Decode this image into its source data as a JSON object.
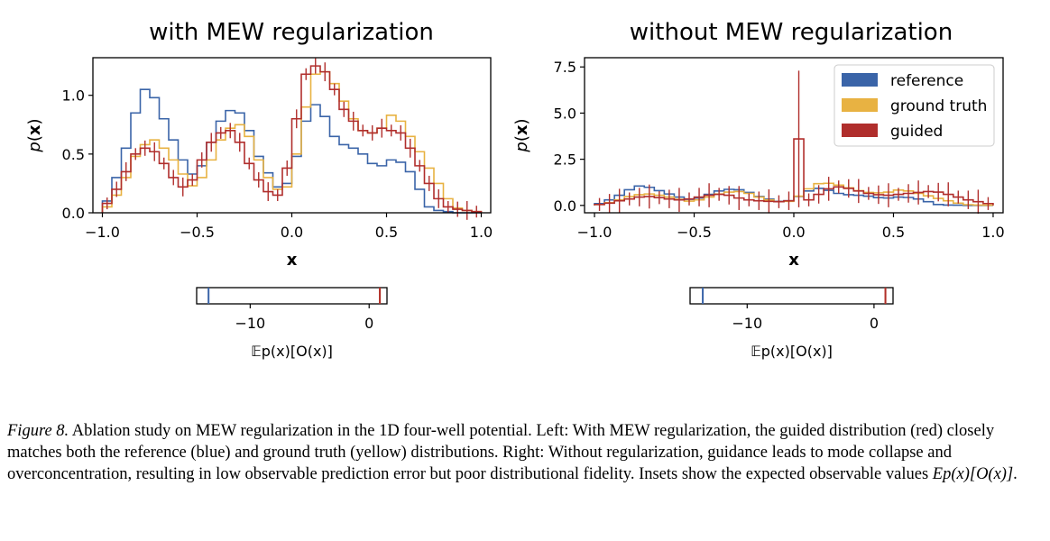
{
  "colors": {
    "reference": "#3a64a8",
    "ground_truth": "#e8b242",
    "guided": "#b02e2c"
  },
  "chart_data": [
    {
      "type": "line",
      "title": "with MEW regularization",
      "xlabel": "x",
      "ylabel": "p(x)",
      "xlim": [
        -1.05,
        1.05
      ],
      "ylim": [
        0,
        1.32
      ],
      "xticks": [
        "−1.0",
        "−0.5",
        "0.0",
        "0.5",
        "1.0"
      ],
      "yticks": [
        "0.0",
        "0.5",
        "1.0"
      ],
      "grid": false,
      "legend": "none",
      "x": [
        -1.0,
        -0.95,
        -0.9,
        -0.85,
        -0.8,
        -0.75,
        -0.7,
        -0.65,
        -0.6,
        -0.55,
        -0.5,
        -0.45,
        -0.4,
        -0.35,
        -0.3,
        -0.25,
        -0.2,
        -0.15,
        -0.1,
        -0.05,
        0.0,
        0.05,
        0.1,
        0.15,
        0.2,
        0.25,
        0.3,
        0.35,
        0.4,
        0.45,
        0.5,
        0.55,
        0.6,
        0.65,
        0.7,
        0.75,
        0.8,
        0.85,
        0.9,
        0.95
      ],
      "series": [
        {
          "name": "reference",
          "values": [
            0.1,
            0.3,
            0.55,
            0.85,
            1.05,
            0.98,
            0.8,
            0.62,
            0.45,
            0.33,
            0.4,
            0.6,
            0.78,
            0.87,
            0.85,
            0.7,
            0.48,
            0.34,
            0.22,
            0.25,
            0.48,
            0.78,
            0.92,
            0.82,
            0.65,
            0.58,
            0.55,
            0.5,
            0.42,
            0.4,
            0.45,
            0.43,
            0.35,
            0.2,
            0.05,
            0.02,
            0.01,
            0.0,
            0.0,
            0.0
          ]
        },
        {
          "name": "ground truth",
          "values": [
            0.05,
            0.15,
            0.3,
            0.48,
            0.58,
            0.62,
            0.55,
            0.45,
            0.33,
            0.23,
            0.3,
            0.45,
            0.62,
            0.72,
            0.75,
            0.65,
            0.45,
            0.3,
            0.2,
            0.22,
            0.5,
            0.9,
            1.18,
            1.2,
            1.1,
            0.95,
            0.8,
            0.7,
            0.68,
            0.72,
            0.83,
            0.78,
            0.65,
            0.52,
            0.38,
            0.25,
            0.12,
            0.04,
            0.02,
            0.01
          ]
        },
        {
          "name": "guided",
          "values": [
            0.08,
            0.2,
            0.35,
            0.5,
            0.55,
            0.52,
            0.42,
            0.3,
            0.22,
            0.28,
            0.45,
            0.6,
            0.68,
            0.7,
            0.6,
            0.42,
            0.28,
            0.18,
            0.15,
            0.38,
            0.8,
            1.18,
            1.25,
            1.2,
            1.05,
            0.88,
            0.78,
            0.7,
            0.68,
            0.72,
            0.7,
            0.68,
            0.55,
            0.4,
            0.25,
            0.12,
            0.05,
            0.03,
            0.02,
            0.01
          ]
        }
      ],
      "inset": {
        "xlabel": "𝔼p(x)[O(x)]",
        "xlim": [
          -14.5,
          1.5
        ],
        "xticks": [
          "−10",
          "0"
        ],
        "values": {
          "reference": -13.5,
          "ground truth": 0.9,
          "guided": 0.9
        }
      }
    },
    {
      "type": "line",
      "title": "without MEW regularization",
      "xlabel": "x",
      "ylabel": "p(x)",
      "xlim": [
        -1.05,
        1.05
      ],
      "ylim": [
        -0.4,
        8.0
      ],
      "xticks": [
        "−1.0",
        "−0.5",
        "0.0",
        "0.5",
        "1.0"
      ],
      "yticks": [
        "0.0",
        "2.5",
        "5.0",
        "7.5"
      ],
      "grid": false,
      "legend": "top-right",
      "x": [
        -1.0,
        -0.95,
        -0.9,
        -0.85,
        -0.8,
        -0.75,
        -0.7,
        -0.65,
        -0.6,
        -0.55,
        -0.5,
        -0.45,
        -0.4,
        -0.35,
        -0.3,
        -0.25,
        -0.2,
        -0.15,
        -0.1,
        -0.05,
        0.0,
        0.05,
        0.1,
        0.15,
        0.2,
        0.25,
        0.3,
        0.35,
        0.4,
        0.45,
        0.5,
        0.55,
        0.6,
        0.65,
        0.7,
        0.75,
        0.8,
        0.85,
        0.9,
        0.95
      ],
      "series": [
        {
          "name": "reference",
          "values": [
            0.1,
            0.3,
            0.55,
            0.85,
            1.05,
            0.98,
            0.8,
            0.62,
            0.45,
            0.33,
            0.4,
            0.6,
            0.78,
            0.87,
            0.85,
            0.7,
            0.48,
            0.34,
            0.22,
            0.25,
            0.48,
            0.78,
            0.92,
            0.82,
            0.65,
            0.58,
            0.55,
            0.5,
            0.42,
            0.4,
            0.45,
            0.43,
            0.35,
            0.2,
            0.05,
            0.02,
            0.01,
            0.0,
            0.0,
            0.0
          ]
        },
        {
          "name": "ground truth",
          "values": [
            0.05,
            0.15,
            0.3,
            0.48,
            0.58,
            0.62,
            0.55,
            0.45,
            0.33,
            0.23,
            0.3,
            0.45,
            0.62,
            0.72,
            0.75,
            0.65,
            0.45,
            0.3,
            0.2,
            0.22,
            0.5,
            0.9,
            1.18,
            1.2,
            1.1,
            0.95,
            0.8,
            0.7,
            0.68,
            0.72,
            0.83,
            0.78,
            0.65,
            0.52,
            0.38,
            0.25,
            0.12,
            0.04,
            0.02,
            0.01
          ]
        },
        {
          "name": "guided",
          "values": [
            0.05,
            0.12,
            0.25,
            0.35,
            0.45,
            0.48,
            0.42,
            0.35,
            0.3,
            0.35,
            0.45,
            0.55,
            0.6,
            0.55,
            0.4,
            0.3,
            0.25,
            0.22,
            0.2,
            0.25,
            3.6,
            0.3,
            0.6,
            0.9,
            1.0,
            0.92,
            0.78,
            0.65,
            0.58,
            0.55,
            0.6,
            0.65,
            0.7,
            0.75,
            0.72,
            0.6,
            0.45,
            0.3,
            0.2,
            0.1
          ]
        }
      ],
      "inset": {
        "xlabel": "𝔼p(x)[O(x)]",
        "xlim": [
          -14.5,
          1.5
        ],
        "xticks": [
          "−10",
          "0"
        ],
        "values": {
          "reference": -13.5,
          "ground truth": 0.9,
          "guided": 0.9
        }
      }
    }
  ],
  "caption": {
    "label": "Figure 8.",
    "text": " Ablation study on MEW regularization in the 1D four-well potential. Left: With MEW regularization, the guided distribution (red) closely matches both the reference (blue) and ground truth (yellow) distributions. Right: Without regularization, guidance leads to mode collapse and overconcentration, resulting in low observable prediction error but poor distributional fidelity. Insets show the expected observable values ",
    "math": "Ep(x)[O(x)]",
    "end": "."
  }
}
